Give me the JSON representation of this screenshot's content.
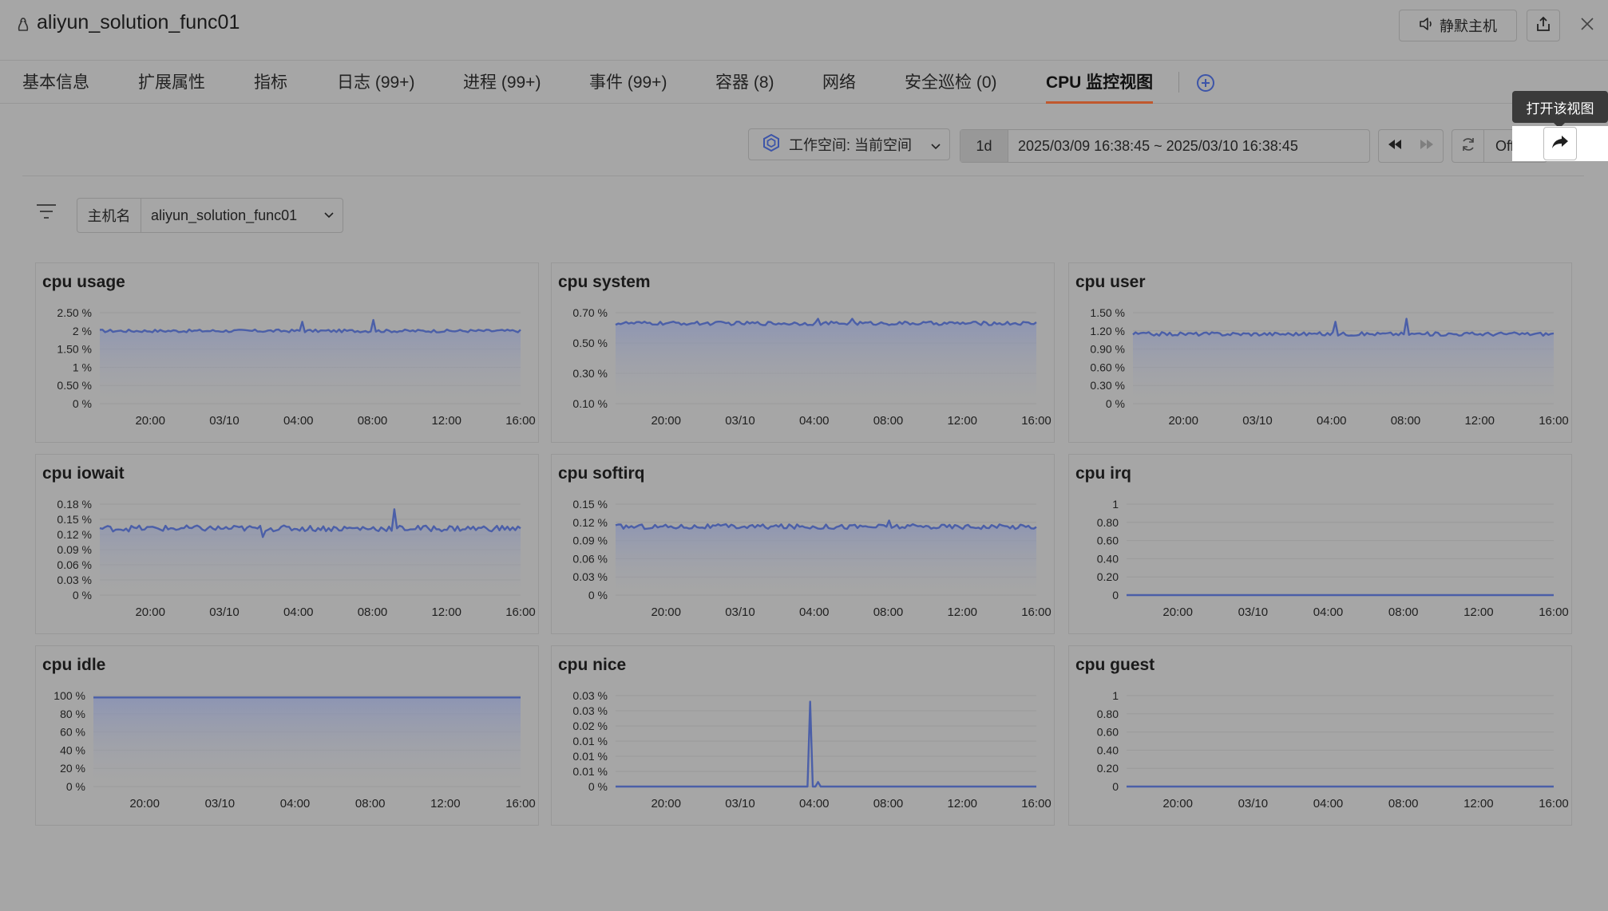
{
  "header": {
    "host_title": "aliyun_solution_func01",
    "mute_label": "静默主机",
    "icons": {
      "host": "linux-penguin-icon",
      "mute": "speaker-icon",
      "share": "share-icon",
      "close": "close-icon"
    }
  },
  "tabs": [
    {
      "label": "基本信息",
      "active": false
    },
    {
      "label": "扩展属性",
      "active": false
    },
    {
      "label": "指标",
      "active": false
    },
    {
      "label": "日志 (99+)",
      "active": false
    },
    {
      "label": "进程 (99+)",
      "active": false
    },
    {
      "label": "事件 (99+)",
      "active": false
    },
    {
      "label": "容器 (8)",
      "active": false
    },
    {
      "label": "网络",
      "active": false
    },
    {
      "label": "安全巡检 (0)",
      "active": false
    },
    {
      "label": "CPU 监控视图",
      "active": true
    }
  ],
  "toolbar": {
    "tooltip": "打开该视图",
    "workspace_label": "工作空间: 当前空间",
    "range_preset": "1d",
    "range_text": "2025/03/09 16:38:45 ~ 2025/03/10 16:38:45",
    "refresh_label": "Off"
  },
  "filter": {
    "key": "主机名",
    "value": "aliyun_solution_func01"
  },
  "colors": {
    "line": "#4b5fa8",
    "fill_top": "#8a93b5",
    "accent": "#c0582e"
  },
  "chart_data": [
    {
      "type": "area",
      "title": "cpu usage",
      "yticks": [
        "2.50 %",
        "2 %",
        "1.50 %",
        "1 %",
        "0.50 %",
        "0 %"
      ],
      "ylim": [
        0,
        2.5
      ],
      "x": [
        "20:00",
        "03/10",
        "04:00",
        "08:00",
        "12:00",
        "16:00"
      ],
      "baseline": 2.0,
      "noise": 0.04,
      "spikes": [
        [
          0.48,
          2.25
        ],
        [
          0.65,
          2.3
        ]
      ]
    },
    {
      "type": "area",
      "title": "cpu system",
      "yticks": [
        "0.70 %",
        "0.50 %",
        "0.30 %",
        "0.10 %"
      ],
      "ylim": [
        0.1,
        0.7
      ],
      "x": [
        "20:00",
        "03/10",
        "04:00",
        "08:00",
        "12:00",
        "16:00"
      ],
      "baseline": 0.63,
      "noise": 0.012,
      "spikes": [
        [
          0.48,
          0.66
        ],
        [
          0.56,
          0.66
        ]
      ]
    },
    {
      "type": "area",
      "title": "cpu user",
      "yticks": [
        "1.50 %",
        "1.20 %",
        "0.90 %",
        "0.60 %",
        "0.30 %",
        "0 %"
      ],
      "ylim": [
        0,
        1.5
      ],
      "x": [
        "20:00",
        "03/10",
        "04:00",
        "08:00",
        "12:00",
        "16:00"
      ],
      "baseline": 1.15,
      "noise": 0.03,
      "spikes": [
        [
          0.48,
          1.35
        ],
        [
          0.65,
          1.4
        ]
      ]
    },
    {
      "type": "area",
      "title": "cpu iowait",
      "yticks": [
        "0.18 %",
        "0.15 %",
        "0.12 %",
        "0.09 %",
        "0.06 %",
        "0.03 %",
        "0 %"
      ],
      "ylim": [
        0,
        0.18
      ],
      "x": [
        "20:00",
        "03/10",
        "04:00",
        "08:00",
        "12:00",
        "16:00"
      ],
      "baseline": 0.132,
      "noise": 0.006,
      "spikes": [
        [
          0.7,
          0.17
        ],
        [
          0.385,
          0.115
        ]
      ]
    },
    {
      "type": "area",
      "title": "cpu softirq",
      "yticks": [
        "0.15 %",
        "0.12 %",
        "0.09 %",
        "0.06 %",
        "0.03 %",
        "0 %"
      ],
      "ylim": [
        0,
        0.15
      ],
      "x": [
        "20:00",
        "03/10",
        "04:00",
        "08:00",
        "12:00",
        "16:00"
      ],
      "baseline": 0.113,
      "noise": 0.004,
      "spikes": [
        [
          0.65,
          0.123
        ]
      ]
    },
    {
      "type": "line",
      "title": "cpu irq",
      "yticks": [
        "1",
        "0.80",
        "0.60",
        "0.40",
        "0.20",
        "0"
      ],
      "ylim": [
        0,
        1
      ],
      "x": [
        "20:00",
        "03/10",
        "04:00",
        "08:00",
        "12:00",
        "16:00"
      ],
      "baseline": 0,
      "noise": 0,
      "spikes": []
    },
    {
      "type": "area",
      "title": "cpu idle",
      "yticks": [
        "100 %",
        "80 %",
        "60 %",
        "40 %",
        "20 %",
        "0 %"
      ],
      "ylim": [
        0,
        100
      ],
      "x": [
        "20:00",
        "03/10",
        "04:00",
        "08:00",
        "12:00",
        "16:00"
      ],
      "baseline": 98,
      "noise": 0,
      "spikes": []
    },
    {
      "type": "line",
      "title": "cpu nice",
      "yticks": [
        "0.03 %",
        "0.03 %",
        "0.02 %",
        "0.01 %",
        "0.01 %",
        "0.01 %",
        "0 %"
      ],
      "ylim": [
        0,
        0.03
      ],
      "x": [
        "20:00",
        "03/10",
        "04:00",
        "08:00",
        "12:00",
        "16:00"
      ],
      "baseline": 0,
      "noise": 0,
      "spikes": [
        [
          0.46,
          0.028
        ],
        [
          0.483,
          0.0015
        ]
      ]
    },
    {
      "type": "line",
      "title": "cpu guest",
      "yticks": [
        "1",
        "0.80",
        "0.60",
        "0.40",
        "0.20",
        "0"
      ],
      "ylim": [
        0,
        1
      ],
      "x": [
        "20:00",
        "03/10",
        "04:00",
        "08:00",
        "12:00",
        "16:00"
      ],
      "baseline": 0,
      "noise": 0,
      "spikes": []
    }
  ]
}
